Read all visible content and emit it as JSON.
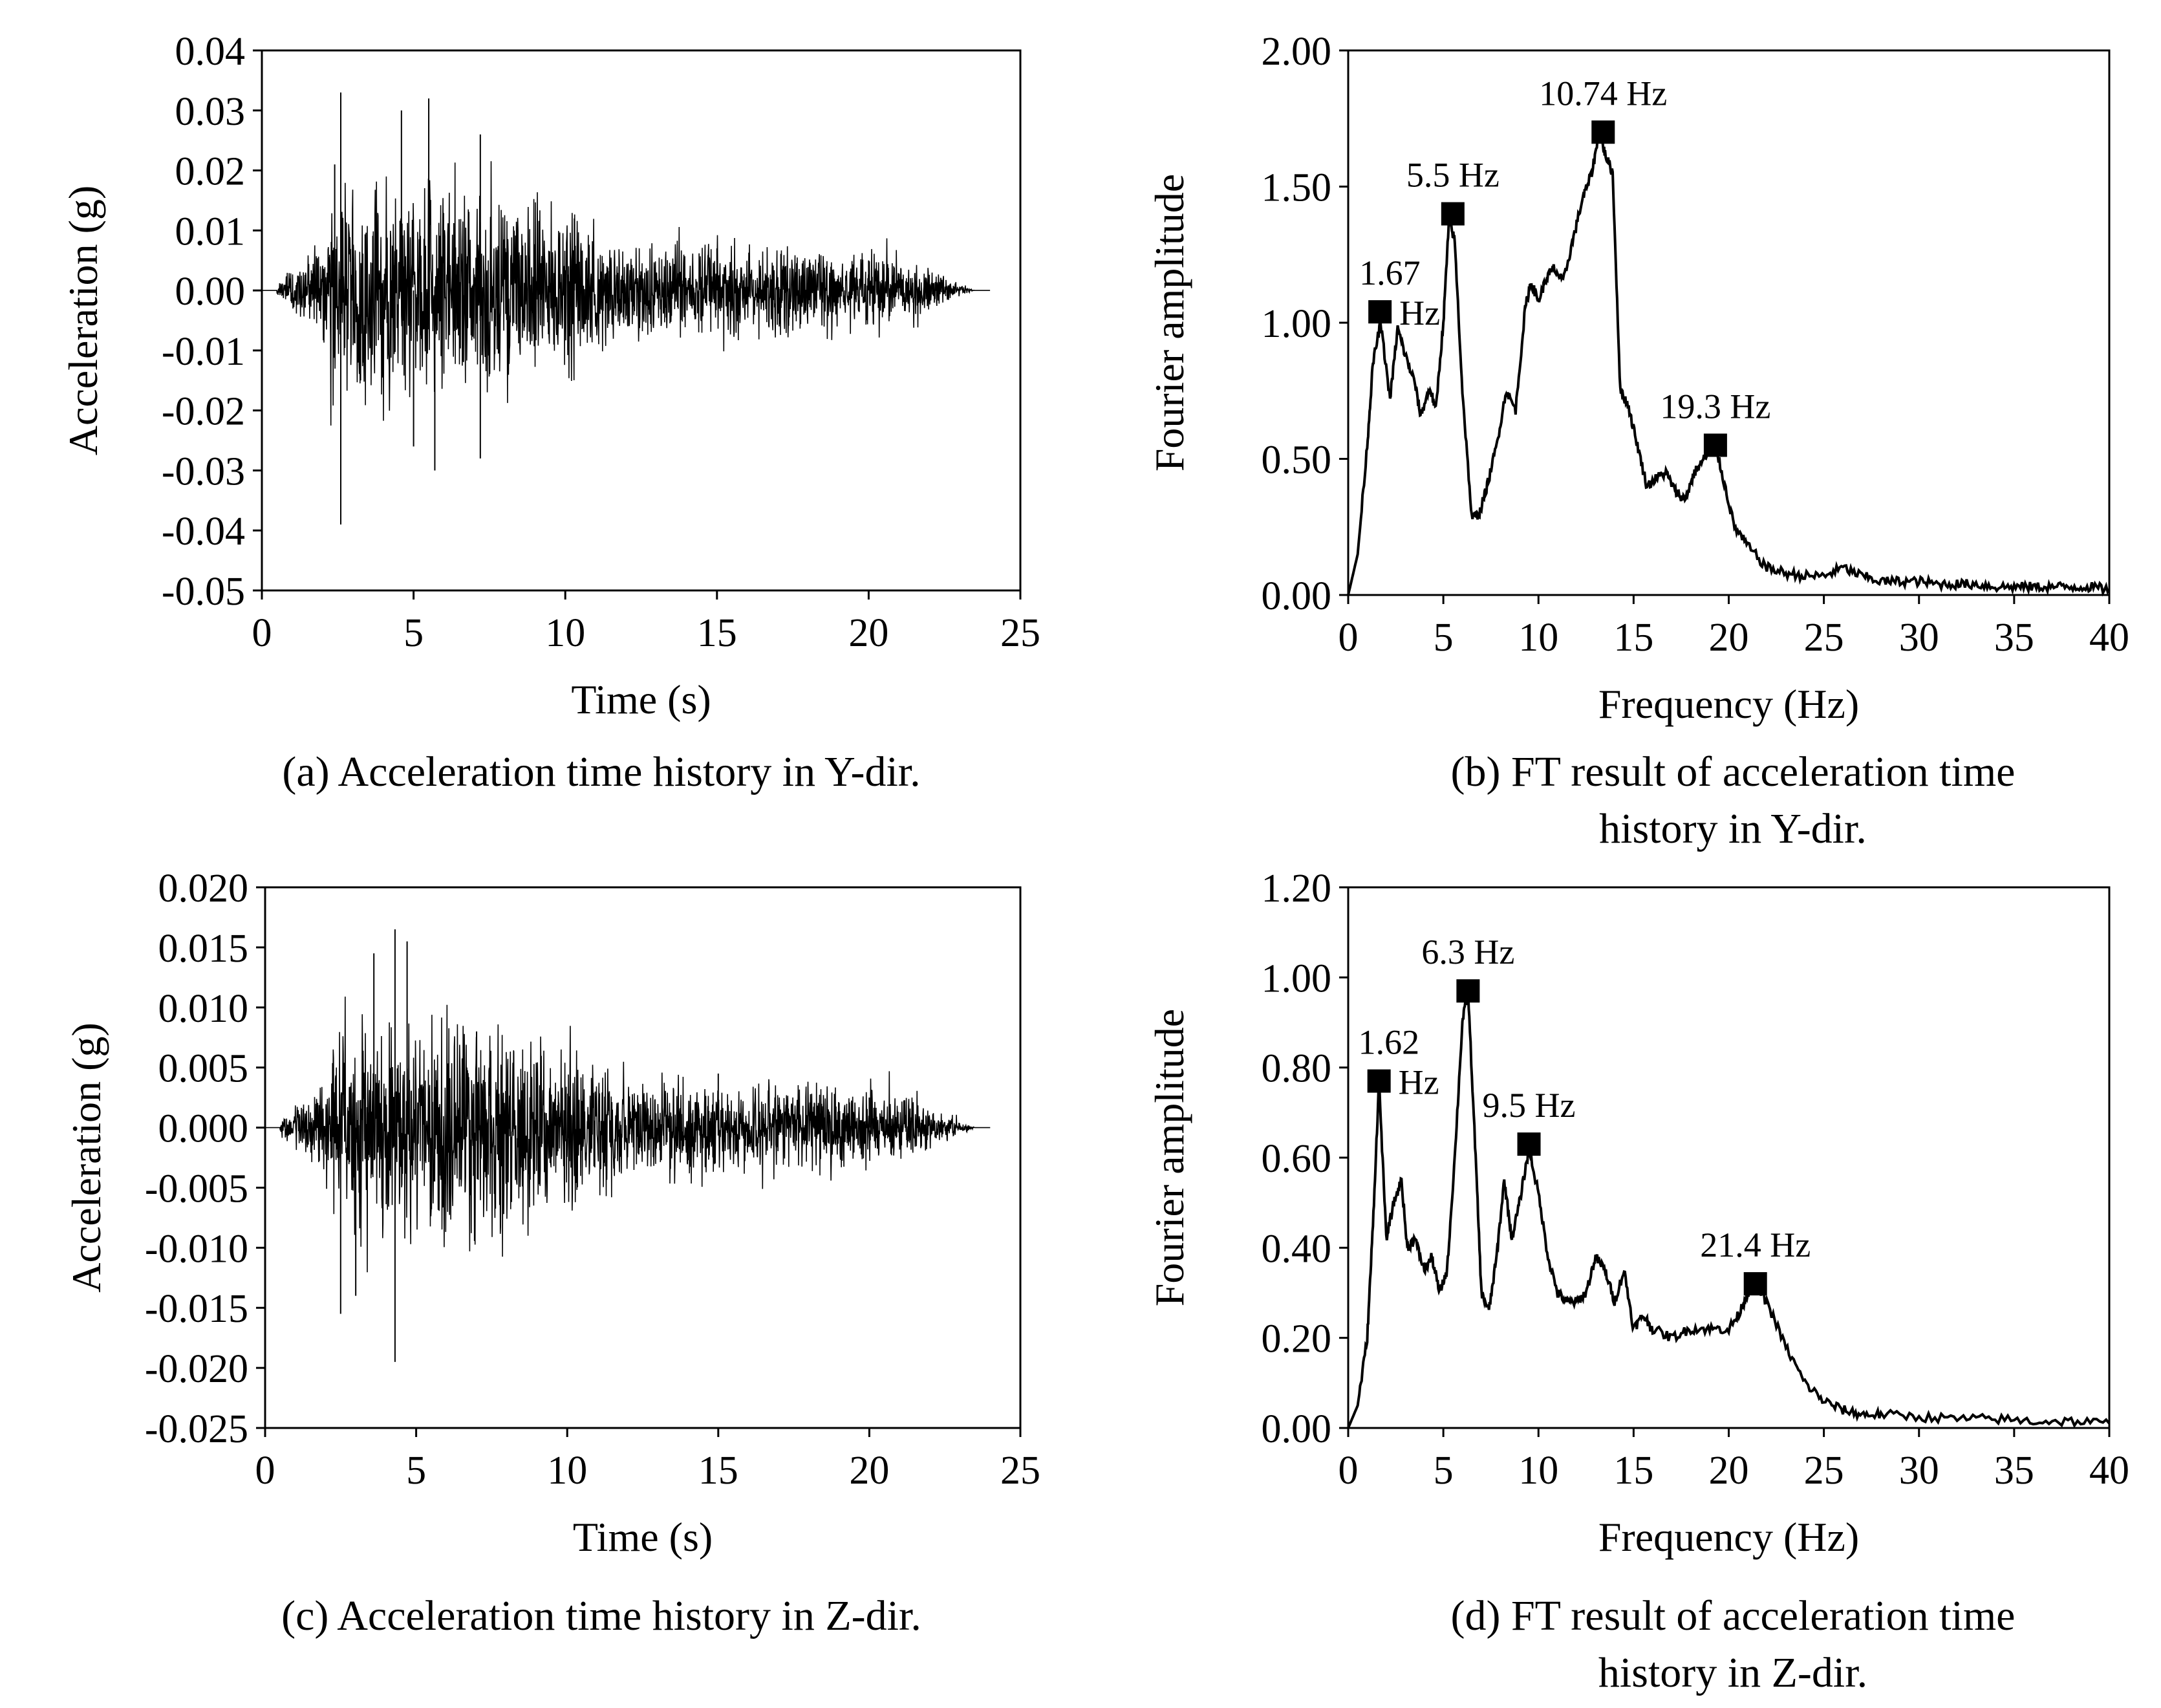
{
  "chart_data": [
    {
      "id": "a",
      "type": "line",
      "xlabel": "Time (s)",
      "ylabel": "Acceleration (g)",
      "xlim": [
        0,
        25
      ],
      "ylim": [
        -0.05,
        0.04
      ],
      "xticks": [
        "0",
        "5",
        "10",
        "15",
        "20",
        "25"
      ],
      "yticks": [
        "0.04",
        "0.03",
        "0.02",
        "0.01",
        "0.00",
        "-0.01",
        "-0.02",
        "-0.03",
        "-0.04",
        "-0.05"
      ],
      "caption": "(a) Acceleration time history in Y-dir.",
      "signal": {
        "start": 0.5,
        "end": 23.5,
        "peak": 0.033,
        "min": -0.039,
        "peak_time": 2.6,
        "min_time": 2.6
      },
      "series": [
        {
          "name": "Acceleration",
          "peaks": [
            {
              "t": 2.4,
              "v": 0.021
            },
            {
              "t": 2.6,
              "v": -0.039
            },
            {
              "t": 2.6,
              "v": 0.033
            },
            {
              "t": 4.6,
              "v": 0.03
            },
            {
              "t": 5.0,
              "v": -0.026
            },
            {
              "t": 5.5,
              "v": 0.032
            },
            {
              "t": 5.7,
              "v": -0.03
            },
            {
              "t": 7.2,
              "v": 0.026
            },
            {
              "t": 7.2,
              "v": -0.028
            },
            {
              "t": 10.3,
              "v": 0.012
            },
            {
              "t": 15.0,
              "v": 0.007
            },
            {
              "t": 20.0,
              "v": 0.005
            }
          ]
        }
      ]
    },
    {
      "id": "b",
      "type": "line",
      "xlabel": "Frequency (Hz)",
      "ylabel": "Fourier amplitude",
      "xlim": [
        0,
        40
      ],
      "ylim": [
        0,
        2.0
      ],
      "xticks": [
        "0",
        "5",
        "10",
        "15",
        "20",
        "25",
        "30",
        "35",
        "40"
      ],
      "yticks": [
        "2.00",
        "1.50",
        "1.00",
        "0.50",
        "0.00"
      ],
      "caption_lines": [
        "(b) FT result of acceleration time",
        "history in Y-dir."
      ],
      "series": [
        {
          "name": "FT amplitude",
          "x": [
            0,
            0.5,
            1,
            1.3,
            1.7,
            2.2,
            2.6,
            3.0,
            3.5,
            3.8,
            4.3,
            4.6,
            5.0,
            5.3,
            5.6,
            6.0,
            6.5,
            6.9,
            7.3,
            7.8,
            8.3,
            8.8,
            9.3,
            9.6,
            10.0,
            10.4,
            10.8,
            11.3,
            11.8,
            12.3,
            12.8,
            13.2,
            13.5,
            13.9,
            14.3,
            14.7,
            15.2,
            15.7,
            16.2,
            16.7,
            17.2,
            17.7,
            18.2,
            18.7,
            19.3,
            19.8,
            20.3,
            21,
            22,
            23,
            24,
            25,
            26,
            27,
            28,
            29,
            30,
            31,
            32,
            33,
            34,
            35,
            36,
            37,
            38,
            39,
            40
          ],
          "y": [
            0,
            0.15,
            0.55,
            0.85,
            1.0,
            0.72,
            0.98,
            0.88,
            0.78,
            0.66,
            0.76,
            0.68,
            1.0,
            1.38,
            1.3,
            0.75,
            0.28,
            0.3,
            0.4,
            0.55,
            0.75,
            0.68,
            1.05,
            1.15,
            1.08,
            1.16,
            1.2,
            1.15,
            1.3,
            1.45,
            1.55,
            1.7,
            1.62,
            1.55,
            0.75,
            0.7,
            0.55,
            0.4,
            0.43,
            0.45,
            0.38,
            0.35,
            0.45,
            0.5,
            0.55,
            0.4,
            0.25,
            0.18,
            0.1,
            0.08,
            0.07,
            0.07,
            0.1,
            0.07,
            0.05,
            0.05,
            0.05,
            0.04,
            0.04,
            0.04,
            0.03,
            0.03,
            0.03,
            0.03,
            0.03,
            0.03,
            0.02
          ]
        }
      ],
      "annotations": [
        {
          "x": 1.67,
          "y": 1.04,
          "lines": [
            "1.67",
            "Hz"
          ]
        },
        {
          "x": 5.5,
          "y": 1.4,
          "lines": [
            "5.5 Hz"
          ]
        },
        {
          "x": 10.74,
          "y": 1.7,
          "mx": 13.4,
          "lines": [
            "10.74 Hz"
          ]
        },
        {
          "x": 19.3,
          "y": 0.55,
          "lines": [
            "19.3 Hz"
          ]
        }
      ]
    },
    {
      "id": "c",
      "type": "line",
      "xlabel": "Time (s)",
      "ylabel": "Acceleration (g)",
      "xlim": [
        0,
        25
      ],
      "ylim": [
        -0.025,
        0.02
      ],
      "xticks": [
        "0",
        "5",
        "10",
        "15",
        "20",
        "25"
      ],
      "yticks": [
        "0.020",
        "0.015",
        "0.010",
        "0.005",
        "0.000",
        "-0.005",
        "-0.010",
        "-0.015",
        "-0.020",
        "-0.025"
      ],
      "caption": "(c) Acceleration time history in Z-dir.",
      "signal": {
        "start": 0.5,
        "end": 23.5,
        "peak": 0.0165,
        "min": -0.0195,
        "peak_time": 4.3,
        "min_time": 4.3
      },
      "series": [
        {
          "name": "Acceleration",
          "peaks": [
            {
              "t": 2.5,
              "v": -0.0155
            },
            {
              "t": 3.0,
              "v": -0.014
            },
            {
              "t": 3.6,
              "v": 0.0145
            },
            {
              "t": 4.3,
              "v": 0.0165
            },
            {
              "t": 4.3,
              "v": -0.0195
            },
            {
              "t": 4.7,
              "v": 0.0155
            },
            {
              "t": 7.0,
              "v": 0.008
            },
            {
              "t": 15.0,
              "v": 0.0045
            },
            {
              "t": 20.0,
              "v": 0.0025
            }
          ]
        }
      ]
    },
    {
      "id": "d",
      "type": "line",
      "xlabel": "Frequency (Hz)",
      "ylabel": "Fourier amplitude",
      "xlim": [
        0,
        40
      ],
      "ylim": [
        0,
        1.2
      ],
      "xticks": [
        "0",
        "5",
        "10",
        "15",
        "20",
        "25",
        "30",
        "35",
        "40"
      ],
      "yticks": [
        "1.20",
        "1.00",
        "0.80",
        "0.60",
        "0.40",
        "0.20",
        "0.00"
      ],
      "caption_lines": [
        "(d) FT result of acceleration time",
        "history in Z-dir."
      ],
      "series": [
        {
          "name": "FT amplitude",
          "x": [
            0,
            0.5,
            1.0,
            1.3,
            1.62,
            2.0,
            2.4,
            2.8,
            3.1,
            3.5,
            4.0,
            4.4,
            4.8,
            5.2,
            5.6,
            6.0,
            6.3,
            6.7,
            7.0,
            7.4,
            7.8,
            8.2,
            8.6,
            9.0,
            9.5,
            10.0,
            10.5,
            11,
            11.5,
            12,
            12.5,
            13,
            13.5,
            14,
            14.5,
            15,
            15.5,
            16,
            17,
            18,
            19,
            20,
            20.5,
            21,
            21.4,
            22,
            23,
            24,
            25,
            26,
            27,
            28,
            30,
            32,
            34,
            36,
            38,
            40
          ],
          "y": [
            0,
            0.05,
            0.2,
            0.45,
            0.77,
            0.42,
            0.5,
            0.55,
            0.4,
            0.42,
            0.35,
            0.38,
            0.3,
            0.35,
            0.6,
            0.9,
            0.97,
            0.6,
            0.3,
            0.26,
            0.38,
            0.55,
            0.42,
            0.5,
            0.62,
            0.52,
            0.38,
            0.3,
            0.28,
            0.28,
            0.3,
            0.38,
            0.35,
            0.28,
            0.35,
            0.22,
            0.25,
            0.22,
            0.2,
            0.22,
            0.22,
            0.22,
            0.25,
            0.3,
            0.32,
            0.28,
            0.18,
            0.1,
            0.06,
            0.04,
            0.03,
            0.03,
            0.025,
            0.02,
            0.02,
            0.015,
            0.015,
            0.01
          ]
        }
      ],
      "annotations": [
        {
          "x": 1.62,
          "y": 0.77,
          "lines": [
            "1.62",
            "Hz"
          ]
        },
        {
          "x": 6.3,
          "y": 0.97,
          "lines": [
            "6.3 Hz"
          ]
        },
        {
          "x": 9.5,
          "y": 0.63,
          "lines": [
            "9.5 Hz"
          ]
        },
        {
          "x": 21.4,
          "y": 0.32,
          "lines": [
            "21.4 Hz"
          ]
        }
      ]
    }
  ],
  "captions": {
    "a": "(a) Acceleration time history in Y-dir.",
    "b1": "(b) FT result of acceleration time",
    "b2": "history in Y-dir.",
    "c": "(c) Acceleration time history in Z-dir.",
    "d1": "(d) FT result of acceleration time",
    "d2": "history in Z-dir."
  }
}
